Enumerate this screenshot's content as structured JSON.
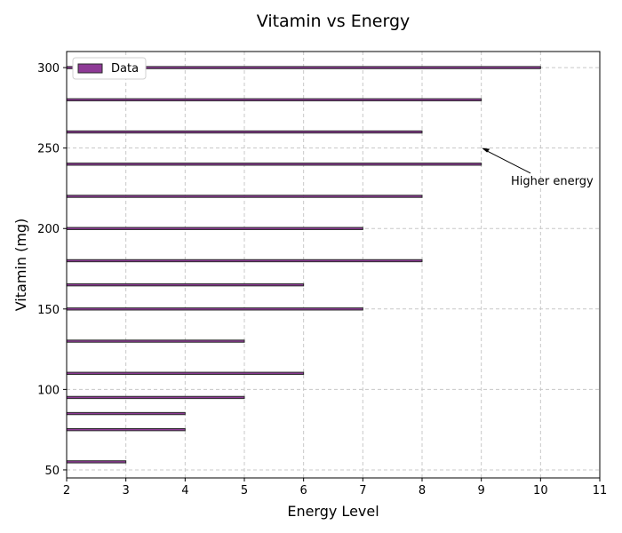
{
  "chart_data": {
    "type": "bar",
    "orientation": "horizontal",
    "title": "Vitamin vs Energy",
    "xlabel": "Energy Level",
    "ylabel": "Vitamin (mg)",
    "xlim": [
      2,
      11
    ],
    "ylim": [
      45,
      310
    ],
    "xticks": [
      2,
      3,
      4,
      5,
      6,
      7,
      8,
      9,
      10,
      11
    ],
    "yticks": [
      50,
      100,
      150,
      200,
      250,
      300
    ],
    "grid": true,
    "legend": {
      "placement": "top-left",
      "entries": [
        "Data"
      ]
    },
    "series": [
      {
        "name": "Data",
        "color": "#8e3a96",
        "edge_color": "#2b2b2b",
        "points": [
          {
            "y": 55,
            "x": 3
          },
          {
            "y": 75,
            "x": 4
          },
          {
            "y": 85,
            "x": 4
          },
          {
            "y": 95,
            "x": 5
          },
          {
            "y": 110,
            "x": 6
          },
          {
            "y": 130,
            "x": 5
          },
          {
            "y": 150,
            "x": 7
          },
          {
            "y": 165,
            "x": 6
          },
          {
            "y": 180,
            "x": 8
          },
          {
            "y": 200,
            "x": 7
          },
          {
            "y": 220,
            "x": 8
          },
          {
            "y": 240,
            "x": 9
          },
          {
            "y": 260,
            "x": 8
          },
          {
            "y": 280,
            "x": 9
          },
          {
            "y": 300,
            "x": 10
          }
        ]
      }
    ],
    "annotations": [
      {
        "text": "Higher energy",
        "point": {
          "x": 9,
          "y": 250
        },
        "text_pos": {
          "x": 9.5,
          "y": 230
        }
      }
    ]
  }
}
